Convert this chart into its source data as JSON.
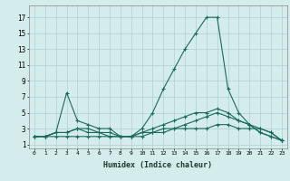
{
  "background_color": "#d4ecec",
  "grid_color": "#b0d0d0",
  "line_color": "#1a6b5a",
  "xlabel": "Humidex (Indice chaleur)",
  "xlim": [
    -0.5,
    23.5
  ],
  "ylim": [
    0.5,
    18.5
  ],
  "xticks": [
    0,
    1,
    2,
    3,
    4,
    5,
    6,
    7,
    8,
    9,
    10,
    11,
    12,
    13,
    14,
    15,
    16,
    17,
    18,
    19,
    20,
    21,
    22,
    23
  ],
  "yticks": [
    1,
    3,
    5,
    7,
    9,
    11,
    13,
    15,
    17
  ],
  "series": [
    {
      "x": [
        0,
        1,
        2,
        3,
        4,
        5,
        6,
        7,
        8,
        9,
        10,
        11,
        12,
        13,
        14,
        15,
        16,
        17,
        18,
        19,
        20,
        21,
        22,
        23
      ],
      "y": [
        2,
        2,
        2,
        2,
        2,
        2,
        2,
        2,
        2,
        2,
        3,
        5,
        8,
        10.5,
        13,
        15,
        17,
        17,
        8,
        5,
        3.5,
        2.5,
        2,
        1.5
      ]
    },
    {
      "x": [
        0,
        1,
        2,
        3,
        4,
        5,
        6,
        7,
        8,
        9,
        10,
        11,
        12,
        13,
        14,
        15,
        16,
        17,
        18,
        19,
        20,
        21,
        22,
        23
      ],
      "y": [
        2,
        2,
        2.5,
        7.5,
        4,
        3.5,
        3,
        3,
        2,
        2,
        2.5,
        3,
        3.5,
        4,
        4.5,
        5,
        5,
        5.5,
        5,
        4,
        3.5,
        2.5,
        2,
        1.5
      ]
    },
    {
      "x": [
        0,
        1,
        2,
        3,
        4,
        5,
        6,
        7,
        8,
        9,
        10,
        11,
        12,
        13,
        14,
        15,
        16,
        17,
        18,
        19,
        20,
        21,
        22,
        23
      ],
      "y": [
        2,
        2,
        2.5,
        2.5,
        3,
        3,
        2.5,
        2.5,
        2,
        2,
        2.5,
        2.5,
        3,
        3,
        3.5,
        4,
        4.5,
        5,
        4.5,
        4,
        3.5,
        3,
        2.5,
        1.5
      ]
    },
    {
      "x": [
        0,
        1,
        2,
        3,
        4,
        5,
        6,
        7,
        8,
        9,
        10,
        11,
        12,
        13,
        14,
        15,
        16,
        17,
        18,
        19,
        20,
        21,
        22,
        23
      ],
      "y": [
        2,
        2,
        2.5,
        2.5,
        3,
        2.5,
        2.5,
        2,
        2,
        2,
        2,
        2.5,
        2.5,
        3,
        3,
        3,
        3,
        3.5,
        3.5,
        3,
        3,
        3,
        2.5,
        1.5
      ]
    }
  ]
}
